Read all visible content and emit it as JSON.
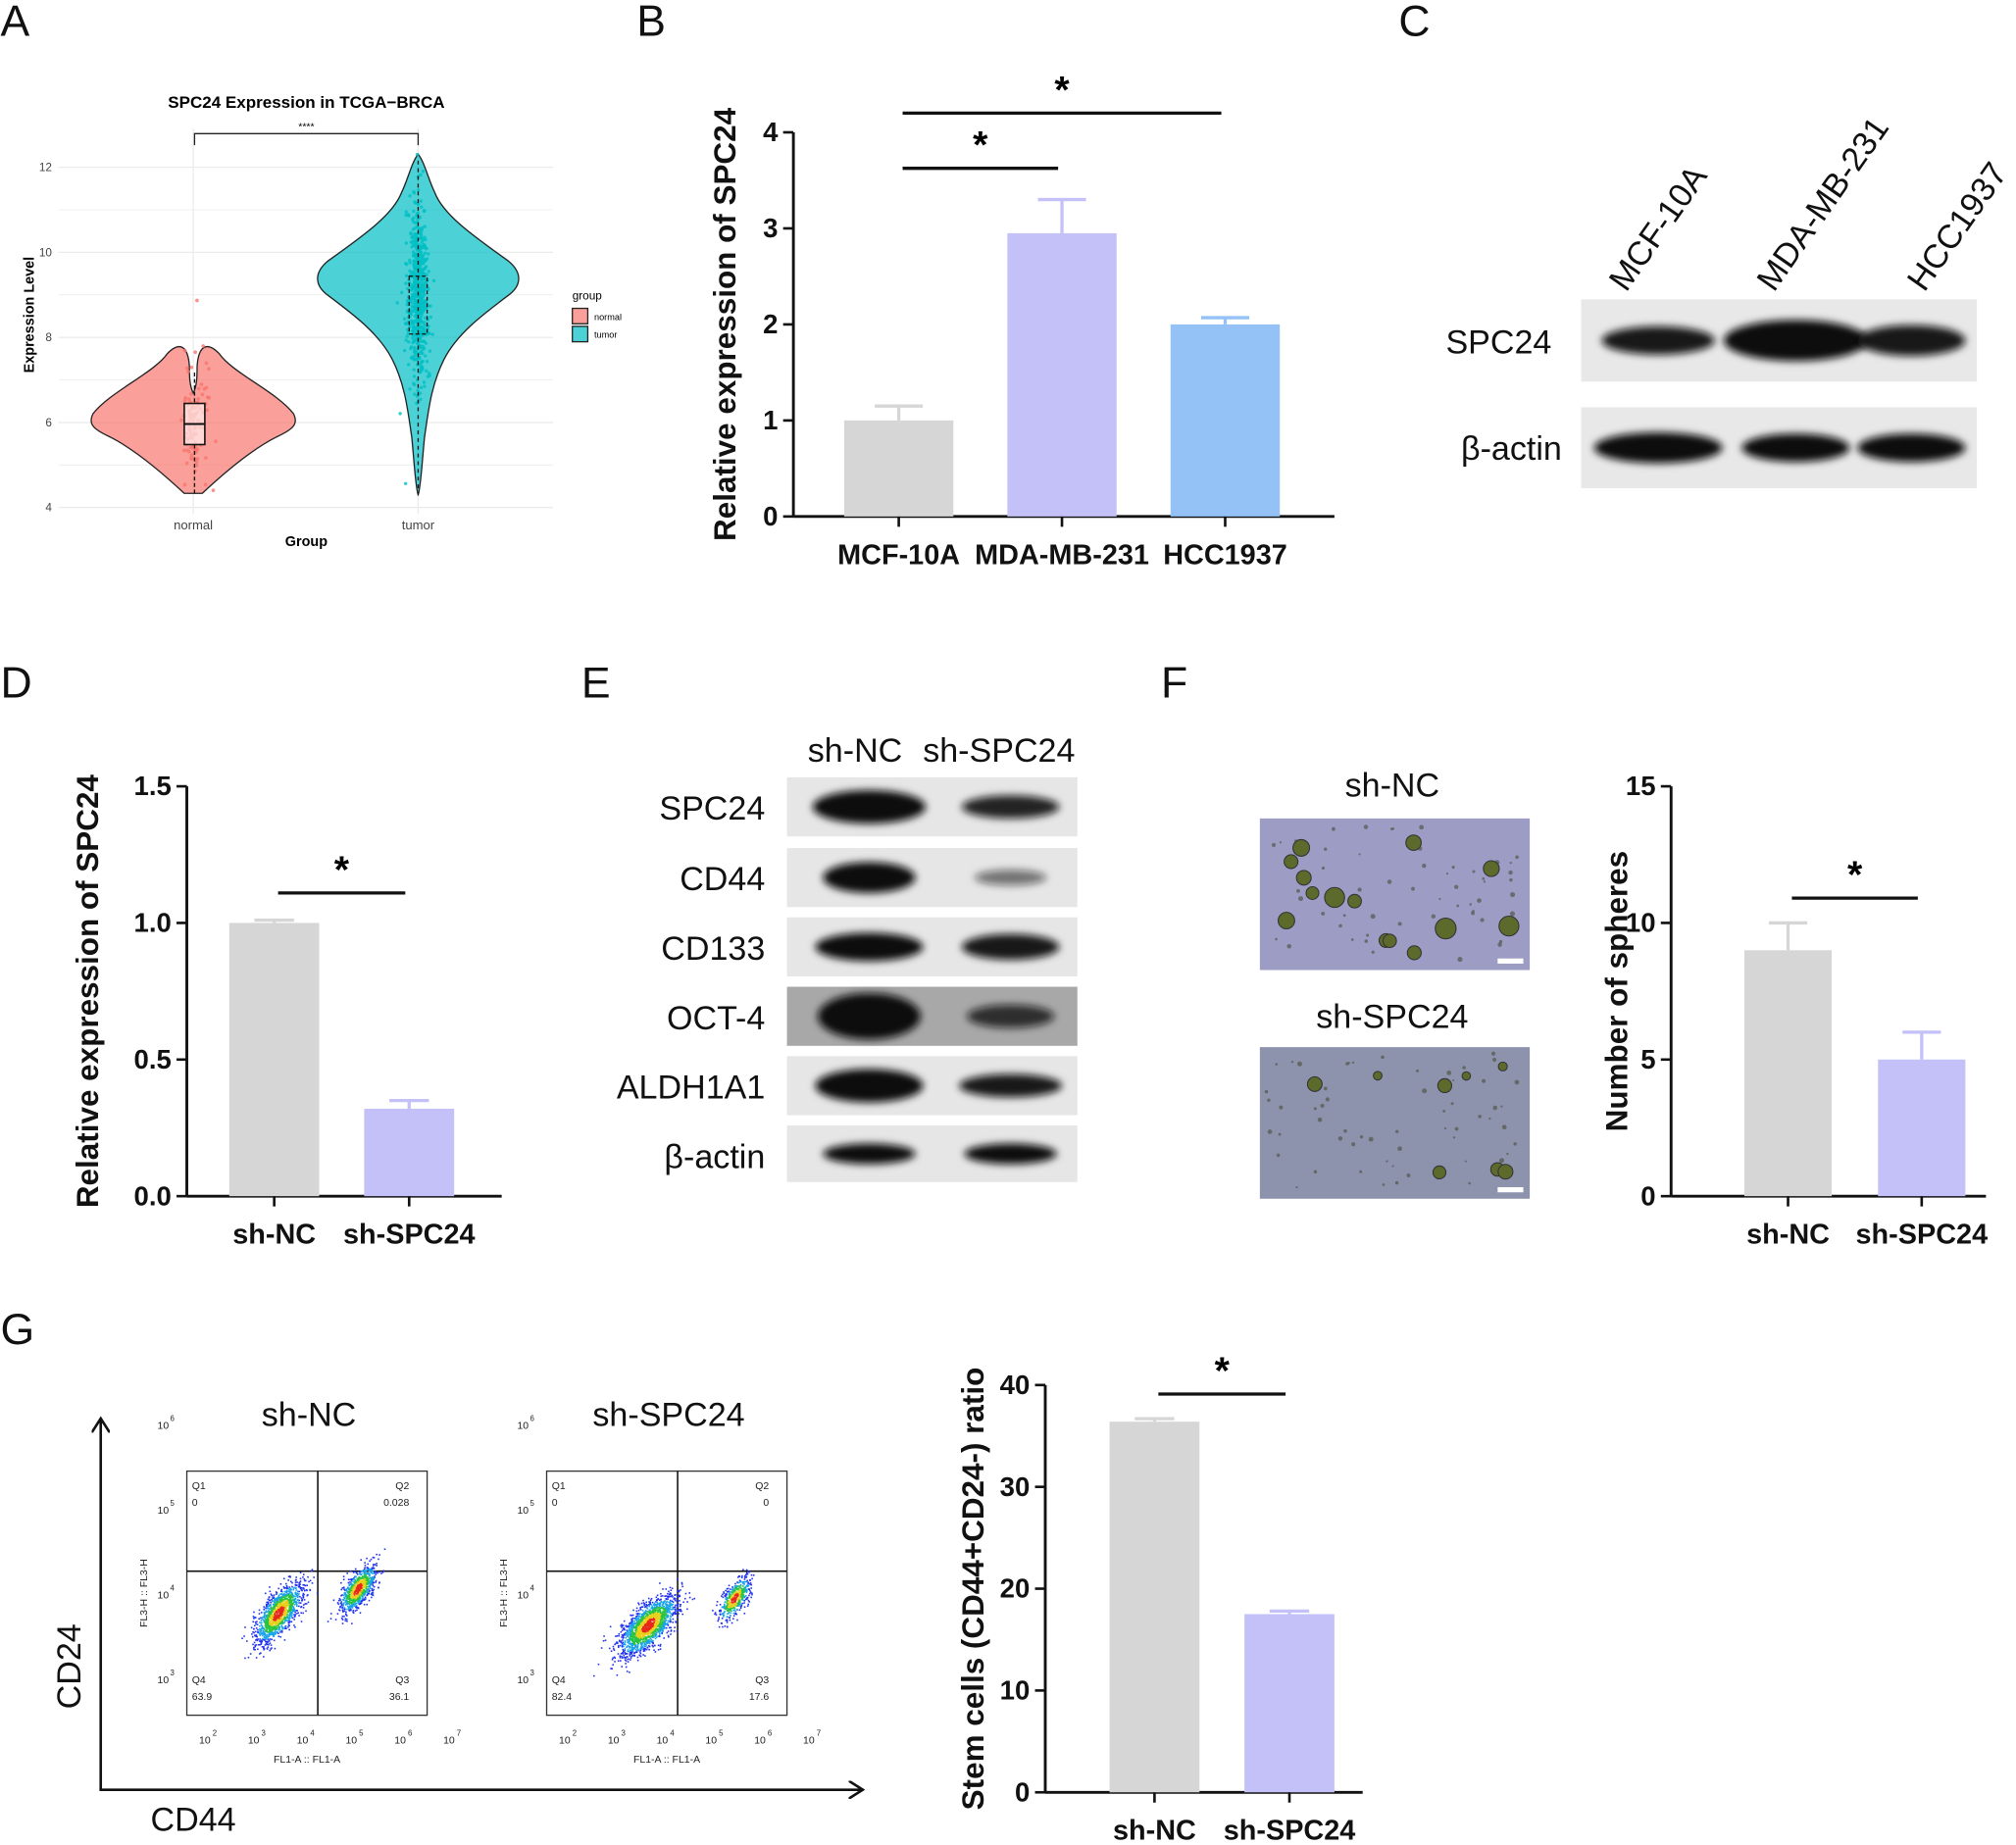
{
  "panel_labels": [
    "A",
    "B",
    "C",
    "D",
    "E",
    "F",
    "G"
  ],
  "colors": {
    "grey": "#d6d6d6",
    "lavender": "#c3c1f8",
    "blue": "#94c2f7",
    "normal": "#f8766d",
    "tumor": "#00bfc4"
  },
  "chart_data": [
    {
      "id": "A",
      "type": "violin",
      "title": "SPC24 Expression in TCGA−BRCA",
      "xlabel": "Group",
      "ylabel": "Expression Level",
      "categories": [
        "normal",
        "tumor"
      ],
      "yticks": [
        4,
        6,
        8,
        10,
        12
      ],
      "ylim": [
        3.9,
        12.8
      ],
      "significance": "****",
      "legend": {
        "title": "group",
        "items": [
          "normal",
          "tumor"
        ],
        "placement": "right"
      },
      "summary": [
        {
          "group": "normal",
          "min": 4.25,
          "q1": 5.45,
          "median": 5.95,
          "q3": 6.45,
          "max": 9.15
        },
        {
          "group": "tumor",
          "min": 4.3,
          "q1": 8.3,
          "median": 9.1,
          "q3": 9.8,
          "max": 12.3
        }
      ],
      "grid": true
    },
    {
      "id": "B",
      "type": "bar",
      "ylabel": "Relative expression of SPC24",
      "categories": [
        "MCF-10A",
        "MDA-MB-231",
        "HCC1937"
      ],
      "values": [
        1.0,
        2.95,
        2.0
      ],
      "errors": [
        0.15,
        0.35,
        0.07
      ],
      "yticks": [
        "0",
        "1",
        "2",
        "3",
        "4"
      ],
      "ylim": [
        0,
        4
      ],
      "significance": [
        {
          "from": 0,
          "to": 1,
          "label": "*"
        },
        {
          "from": 0,
          "to": 2,
          "label": "*"
        }
      ]
    },
    {
      "id": "D",
      "type": "bar",
      "ylabel": "Relative expression of SPC24",
      "categories": [
        "sh-NC",
        "sh-SPC24"
      ],
      "values": [
        1.0,
        0.32
      ],
      "errors": [
        0.01,
        0.03
      ],
      "yticks": [
        "0.0",
        "0.5",
        "1.0",
        "1.5"
      ],
      "ylim": [
        0,
        1.5
      ],
      "significance": [
        {
          "from": 0,
          "to": 1,
          "label": "*"
        }
      ]
    },
    {
      "id": "F",
      "type": "bar",
      "ylabel": "Number of spheres",
      "categories": [
        "sh-NC",
        "sh-SPC24"
      ],
      "values": [
        9,
        5
      ],
      "errors": [
        1,
        1
      ],
      "yticks": [
        "0",
        "5",
        "10",
        "15"
      ],
      "ylim": [
        0,
        15
      ],
      "significance": [
        {
          "from": 0,
          "to": 1,
          "label": "*"
        }
      ]
    },
    {
      "id": "G",
      "type": "bar",
      "ylabel": "Stem cells (CD44+CD24-) ratio",
      "categories": [
        "sh-NC",
        "sh-SPC24"
      ],
      "values": [
        36.4,
        17.5
      ],
      "errors": [
        0.3,
        0.3
      ],
      "yticks": [
        "0",
        "10",
        "20",
        "30",
        "40"
      ],
      "ylim": [
        0,
        40
      ],
      "significance": [
        {
          "from": 0,
          "to": 1,
          "label": "*"
        }
      ]
    }
  ],
  "panel_c": {
    "lanes": [
      "MCF-10A",
      "MDA-MB-231",
      "HCC1937"
    ],
    "rows": [
      "SPC24",
      "β-actin"
    ]
  },
  "panel_e": {
    "lanes": [
      "sh-NC",
      "sh-SPC24"
    ],
    "rows": [
      "SPC24",
      "CD44",
      "CD133",
      "OCT-4",
      "ALDH1A1",
      "β-actin"
    ]
  },
  "panel_f": {
    "images": [
      "sh-NC",
      "sh-SPC24"
    ]
  },
  "panel_g": {
    "y_axis": "CD24",
    "x_axis": "CD44",
    "plots": [
      {
        "title": "sh-NC",
        "Q1": "0",
        "Q2": "0.028",
        "Q3": "36.1",
        "Q4": "63.9"
      },
      {
        "title": "sh-SPC24",
        "Q1": "0",
        "Q2": "0",
        "Q3": "17.6",
        "Q4": "82.4"
      }
    ],
    "quadrant_names": [
      "Q1",
      "Q2",
      "Q3",
      "Q4"
    ],
    "plot_xlabel": "FL1-A :: FL1-A",
    "plot_ylabel": "FL3-H :: FL3-H",
    "xticks": [
      "2",
      "3",
      "4",
      "5",
      "6",
      "7"
    ],
    "yticks": [
      "3",
      "4",
      "5",
      "6"
    ]
  }
}
